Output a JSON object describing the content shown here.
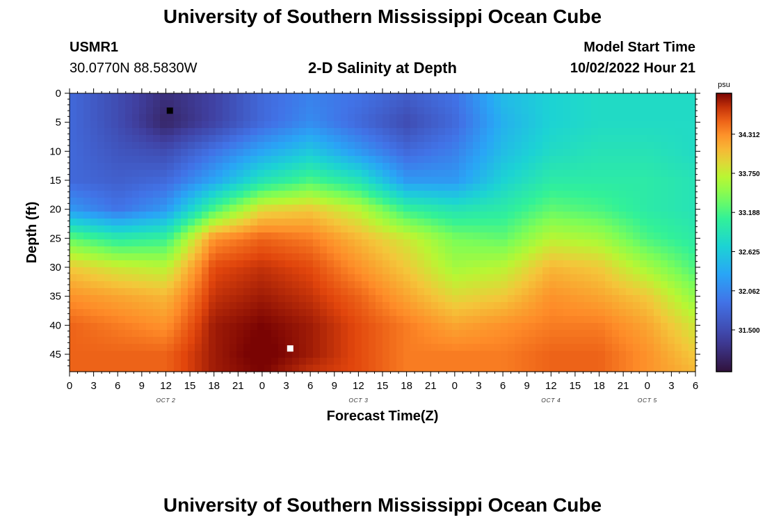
{
  "header": {
    "title": "University of Southern Mississippi Ocean Cube",
    "station": "USMR1",
    "coords": "30.0770N  88.5830W",
    "plot_title": "2-D Salinity at Depth",
    "model_label": "Model Start Time",
    "model_time": "10/02/2022 Hour 21"
  },
  "footer": {
    "title": "University of Southern Mississippi Ocean Cube"
  },
  "chart_data": {
    "type": "heatmap",
    "title": "2-D Salinity at Depth",
    "xlabel": "Forecast Time(Z)",
    "ylabel": "Depth (ft)",
    "xlim": [
      0,
      78
    ],
    "ylim": [
      48,
      0
    ],
    "x_tick_values": [
      0,
      3,
      6,
      9,
      12,
      15,
      18,
      21,
      24,
      27,
      30,
      33,
      36,
      39,
      42,
      45,
      48,
      51,
      54,
      57,
      60,
      63,
      66,
      69,
      72,
      75,
      78
    ],
    "x_tick_labels": [
      "0",
      "3",
      "6",
      "9",
      "12",
      "15",
      "18",
      "21",
      "0",
      "3",
      "6",
      "9",
      "12",
      "15",
      "18",
      "21",
      "0",
      "3",
      "6",
      "9",
      "12",
      "15",
      "18",
      "21",
      "0",
      "3",
      "6"
    ],
    "y_tick_values": [
      0,
      5,
      10,
      15,
      20,
      25,
      30,
      35,
      40,
      45
    ],
    "y_tick_labels": [
      "0",
      "5",
      "10",
      "15",
      "20",
      "25",
      "30",
      "35",
      "40",
      "45"
    ],
    "day_labels": [
      {
        "text": "OCT 2",
        "x": 12
      },
      {
        "text": "OCT 3",
        "x": 36
      },
      {
        "text": "OCT 4",
        "x": 60
      },
      {
        "text": "OCT 5",
        "x": 72
      }
    ],
    "markers": [
      {
        "name": "min-salinity-marker",
        "x": 12.5,
        "depth": 3,
        "color": "#000000"
      },
      {
        "name": "max-salinity-marker",
        "x": 27.5,
        "depth": 44,
        "color": "#ffffff"
      }
    ],
    "colorbar": {
      "unit": "psu",
      "range": [
        30.9,
        34.9
      ],
      "ticks": [
        "31.500",
        "32.062",
        "32.625",
        "33.188",
        "33.750",
        "34.312"
      ],
      "tick_values": [
        31.5,
        32.062,
        32.625,
        33.188,
        33.75,
        34.312
      ]
    },
    "grid_x": [
      0,
      6,
      12,
      18,
      24,
      30,
      36,
      42,
      48,
      54,
      60,
      66,
      72,
      78
    ],
    "grid_depth": [
      0,
      5,
      10,
      15,
      20,
      25,
      30,
      35,
      40,
      45,
      48
    ],
    "values": [
      [
        31.8,
        31.5,
        31.2,
        31.4,
        31.8,
        32.0,
        31.9,
        31.7,
        31.9,
        32.5,
        32.7,
        32.8,
        32.8,
        32.8
      ],
      [
        31.8,
        31.5,
        31.1,
        31.4,
        31.8,
        32.1,
        31.8,
        31.5,
        31.8,
        32.4,
        32.7,
        32.8,
        32.8,
        32.8
      ],
      [
        31.8,
        31.6,
        31.5,
        31.9,
        32.3,
        32.6,
        32.2,
        31.8,
        32.0,
        32.5,
        32.8,
        32.9,
        32.9,
        32.8
      ],
      [
        31.8,
        31.7,
        31.8,
        32.3,
        32.9,
        33.2,
        32.9,
        32.2,
        32.2,
        32.7,
        33.0,
        33.0,
        33.0,
        32.9
      ],
      [
        32.2,
        31.9,
        32.2,
        33.2,
        33.9,
        34.0,
        33.7,
        33.1,
        32.9,
        33.0,
        33.3,
        33.2,
        33.0,
        32.9
      ],
      [
        33.3,
        33.0,
        33.1,
        34.3,
        34.5,
        34.4,
        34.1,
        33.8,
        33.4,
        33.3,
        33.7,
        33.6,
        33.2,
        33.0
      ],
      [
        34.0,
        33.8,
        33.7,
        34.6,
        34.7,
        34.6,
        34.3,
        34.0,
        33.6,
        33.7,
        34.1,
        34.0,
        33.6,
        33.2
      ],
      [
        34.3,
        34.2,
        34.1,
        34.7,
        34.8,
        34.7,
        34.5,
        34.2,
        33.9,
        34.0,
        34.3,
        34.2,
        34.0,
        33.5
      ],
      [
        34.5,
        34.4,
        34.3,
        34.8,
        34.9,
        34.8,
        34.6,
        34.4,
        34.2,
        34.3,
        34.4,
        34.4,
        34.2,
        33.8
      ],
      [
        34.5,
        34.5,
        34.5,
        34.8,
        34.95,
        34.8,
        34.6,
        34.4,
        34.4,
        34.4,
        34.5,
        34.5,
        34.3,
        34.0
      ],
      [
        34.5,
        34.5,
        34.5,
        34.8,
        34.9,
        34.7,
        34.6,
        34.4,
        34.4,
        34.4,
        34.5,
        34.5,
        34.3,
        34.1
      ]
    ]
  }
}
